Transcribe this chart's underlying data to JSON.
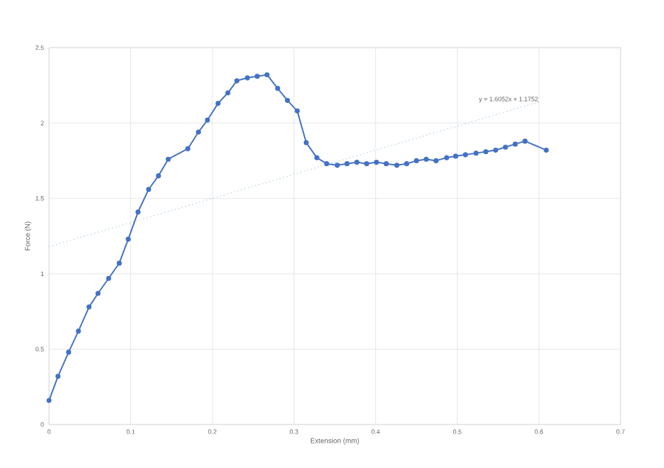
{
  "chart_data": {
    "type": "line",
    "xlabel": "Extension (mm)",
    "ylabel": "Force (N)",
    "xlim": [
      0,
      0.7
    ],
    "ylim": [
      0,
      2.5
    ],
    "xticks": [
      0,
      0.1,
      0.2,
      0.3,
      0.4,
      0.5,
      0.6,
      0.7
    ],
    "yticks": [
      0,
      0.5,
      1,
      1.5,
      2,
      2.5
    ],
    "grid": true,
    "marker": "circle",
    "series": [
      {
        "color": "#4472c4",
        "x": [
          0,
          0.011,
          0.024,
          0.036,
          0.049,
          0.06,
          0.073,
          0.086,
          0.097,
          0.109,
          0.122,
          0.134,
          0.146,
          0.17,
          0.183,
          0.194,
          0.207,
          0.219,
          0.23,
          0.243,
          0.255,
          0.267,
          0.28,
          0.292,
          0.304,
          0.315,
          0.328,
          0.34,
          0.353,
          0.365,
          0.377,
          0.389,
          0.401,
          0.413,
          0.426,
          0.438,
          0.45,
          0.462,
          0.474,
          0.487,
          0.498,
          0.51,
          0.523,
          0.535,
          0.547,
          0.559,
          0.571,
          0.583,
          0.609
        ],
        "values": [
          0.16,
          0.32,
          0.48,
          0.62,
          0.78,
          0.87,
          0.97,
          1.07,
          1.23,
          1.41,
          1.56,
          1.65,
          1.76,
          1.83,
          1.94,
          2.02,
          2.13,
          2.2,
          2.28,
          2.3,
          2.31,
          2.32,
          2.23,
          2.15,
          2.08,
          1.87,
          1.77,
          1.73,
          1.72,
          1.73,
          1.74,
          1.73,
          1.74,
          1.73,
          1.72,
          1.73,
          1.75,
          1.76,
          1.75,
          1.77,
          1.78,
          1.79,
          1.8,
          1.81,
          1.82,
          1.84,
          1.86,
          1.88,
          1.82
        ]
      },
      {
        "type": "line",
        "color": "#9dc3e6",
        "marker": "none",
        "line_style": "dotted",
        "x": [
          0,
          0.6
        ],
        "values": [
          1.18,
          2.14
        ]
      }
    ],
    "annotations": [
      "y = 1.6052x + 1.1752"
    ]
  }
}
